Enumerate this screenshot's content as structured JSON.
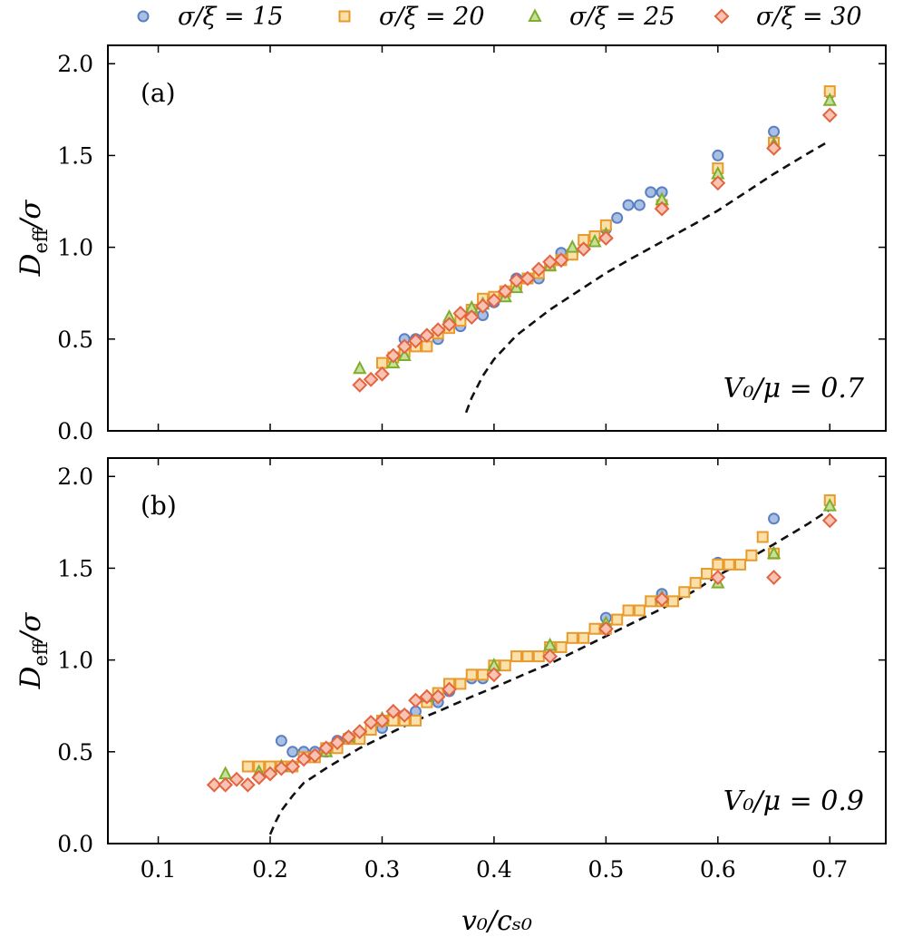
{
  "chart_data": {
    "type": "scatter",
    "xlabel": "v₀/cₛ₀",
    "ylabel": "D_eff/σ",
    "ylabel_main": "D",
    "ylabel_sub": "eff",
    "ylabel_rest": "/σ",
    "xlim": [
      0.055,
      0.75
    ],
    "ylim": [
      0.0,
      2.1
    ],
    "x_ticks": [
      0.1,
      0.2,
      0.3,
      0.4,
      0.5,
      0.6,
      0.7
    ],
    "x_tick_labels": [
      "0.1",
      "0.2",
      "0.3",
      "0.4",
      "0.5",
      "0.6",
      "0.7"
    ],
    "y_ticks": [
      0.0,
      0.5,
      1.0,
      1.5,
      2.0
    ],
    "y_tick_labels": [
      "0.0",
      "0.5",
      "1.0",
      "1.5",
      "2.0"
    ],
    "legend": [
      {
        "name": "σ/ξ = 15",
        "marker": "circle",
        "fill": "#a9c0e3",
        "stroke": "#5b7fc4"
      },
      {
        "name": "σ/ξ = 20",
        "marker": "square",
        "fill": "#fbe0aa",
        "stroke": "#e89a2c"
      },
      {
        "name": "σ/ξ = 25",
        "marker": "triangle",
        "fill": "#c8e09a",
        "stroke": "#7fae2e"
      },
      {
        "name": "σ/ξ = 30",
        "marker": "diamond",
        "fill": "#f8c3b3",
        "stroke": "#e46440"
      }
    ],
    "panels": [
      {
        "label": "(a)",
        "annotation": "V₀/μ = 0.7",
        "dashed_line": {
          "x": [
            0.375,
            0.38,
            0.39,
            0.4,
            0.42,
            0.45,
            0.48,
            0.5,
            0.52,
            0.55,
            0.58,
            0.6,
            0.62,
            0.65,
            0.68,
            0.7
          ],
          "y": [
            0.1,
            0.18,
            0.3,
            0.39,
            0.52,
            0.66,
            0.78,
            0.86,
            0.93,
            1.03,
            1.13,
            1.2,
            1.28,
            1.4,
            1.51,
            1.58
          ]
        },
        "series": [
          {
            "name": "σ/ξ = 15",
            "x": [
              0.32,
              0.33,
              0.35,
              0.37,
              0.39,
              0.4,
              0.42,
              0.44,
              0.46,
              0.47,
              0.5,
              0.51,
              0.52,
              0.53,
              0.54,
              0.55,
              0.6,
              0.65,
              0.7
            ],
            "y": [
              0.5,
              0.5,
              0.5,
              0.57,
              0.63,
              0.7,
              0.83,
              0.83,
              0.97,
              0.96,
              1.1,
              1.16,
              1.23,
              1.23,
              1.3,
              1.3,
              1.5,
              1.63,
              1.84
            ]
          },
          {
            "name": "σ/ξ = 20",
            "x": [
              0.3,
              0.31,
              0.32,
              0.33,
              0.34,
              0.35,
              0.36,
              0.37,
              0.38,
              0.39,
              0.4,
              0.41,
              0.42,
              0.43,
              0.44,
              0.45,
              0.46,
              0.47,
              0.48,
              0.49,
              0.5,
              0.55,
              0.6,
              0.65,
              0.7
            ],
            "y": [
              0.37,
              0.4,
              0.43,
              0.46,
              0.46,
              0.53,
              0.56,
              0.6,
              0.66,
              0.72,
              0.73,
              0.76,
              0.8,
              0.83,
              0.86,
              0.9,
              0.93,
              0.96,
              1.04,
              1.06,
              1.12,
              1.23,
              1.43,
              1.57,
              1.85
            ]
          },
          {
            "name": "σ/ξ = 25",
            "x": [
              0.28,
              0.31,
              0.32,
              0.36,
              0.38,
              0.39,
              0.41,
              0.42,
              0.45,
              0.47,
              0.49,
              0.5,
              0.55,
              0.6,
              0.65,
              0.7
            ],
            "y": [
              0.34,
              0.37,
              0.41,
              0.62,
              0.67,
              0.69,
              0.73,
              0.78,
              0.9,
              1.0,
              1.03,
              1.07,
              1.26,
              1.4,
              1.56,
              1.8
            ]
          },
          {
            "name": "σ/ξ = 30",
            "x": [
              0.28,
              0.29,
              0.3,
              0.31,
              0.32,
              0.33,
              0.34,
              0.35,
              0.36,
              0.37,
              0.38,
              0.39,
              0.4,
              0.41,
              0.42,
              0.43,
              0.44,
              0.45,
              0.46,
              0.48,
              0.5,
              0.55,
              0.6,
              0.65,
              0.7
            ],
            "y": [
              0.25,
              0.28,
              0.31,
              0.41,
              0.46,
              0.49,
              0.52,
              0.55,
              0.58,
              0.64,
              0.62,
              0.68,
              0.71,
              0.76,
              0.82,
              0.83,
              0.88,
              0.92,
              0.93,
              0.99,
              1.05,
              1.21,
              1.35,
              1.54,
              1.72
            ]
          }
        ]
      },
      {
        "label": "(b)",
        "annotation": "V₀/μ = 0.9",
        "dashed_line": {
          "x": [
            0.2,
            0.205,
            0.21,
            0.22,
            0.23,
            0.25,
            0.28,
            0.3,
            0.33,
            0.35,
            0.38,
            0.4,
            0.43,
            0.45,
            0.48,
            0.5,
            0.53,
            0.55,
            0.58,
            0.6,
            0.63,
            0.65,
            0.68,
            0.7
          ],
          "y": [
            0.05,
            0.12,
            0.18,
            0.26,
            0.33,
            0.41,
            0.52,
            0.58,
            0.67,
            0.72,
            0.8,
            0.85,
            0.93,
            0.98,
            1.07,
            1.13,
            1.22,
            1.28,
            1.38,
            1.46,
            1.56,
            1.63,
            1.74,
            1.82
          ]
        },
        "series": [
          {
            "name": "σ/ξ = 15",
            "x": [
              0.21,
              0.22,
              0.23,
              0.24,
              0.25,
              0.26,
              0.27,
              0.28,
              0.29,
              0.3,
              0.31,
              0.32,
              0.33,
              0.34,
              0.35,
              0.36,
              0.38,
              0.39,
              0.4,
              0.45,
              0.5,
              0.55,
              0.6,
              0.65,
              0.7
            ],
            "y": [
              0.56,
              0.5,
              0.5,
              0.5,
              0.5,
              0.56,
              0.58,
              0.6,
              0.62,
              0.63,
              0.7,
              0.7,
              0.72,
              0.77,
              0.77,
              0.83,
              0.9,
              0.9,
              0.96,
              1.06,
              1.23,
              1.36,
              1.53,
              1.77,
              1.86
            ]
          },
          {
            "name": "σ/ξ = 20",
            "x": [
              0.18,
              0.19,
              0.2,
              0.21,
              0.22,
              0.23,
              0.24,
              0.25,
              0.26,
              0.27,
              0.28,
              0.29,
              0.3,
              0.31,
              0.32,
              0.33,
              0.34,
              0.35,
              0.36,
              0.37,
              0.38,
              0.39,
              0.4,
              0.41,
              0.42,
              0.43,
              0.44,
              0.45,
              0.46,
              0.47,
              0.48,
              0.49,
              0.5,
              0.51,
              0.52,
              0.53,
              0.54,
              0.55,
              0.56,
              0.57,
              0.58,
              0.59,
              0.6,
              0.61,
              0.62,
              0.63,
              0.64,
              0.65,
              0.7
            ],
            "y": [
              0.42,
              0.42,
              0.42,
              0.42,
              0.42,
              0.47,
              0.47,
              0.52,
              0.52,
              0.57,
              0.57,
              0.62,
              0.67,
              0.67,
              0.67,
              0.67,
              0.77,
              0.82,
              0.87,
              0.87,
              0.92,
              0.92,
              0.97,
              0.97,
              1.02,
              1.02,
              1.02,
              1.07,
              1.07,
              1.12,
              1.12,
              1.17,
              1.17,
              1.22,
              1.27,
              1.27,
              1.32,
              1.32,
              1.32,
              1.37,
              1.42,
              1.47,
              1.52,
              1.52,
              1.52,
              1.57,
              1.67,
              1.58,
              1.87
            ]
          },
          {
            "name": "σ/ξ = 25",
            "x": [
              0.16,
              0.19,
              0.21,
              0.25,
              0.27,
              0.3,
              0.34,
              0.4,
              0.45,
              0.5,
              0.55,
              0.6,
              0.65,
              0.7
            ],
            "y": [
              0.38,
              0.39,
              0.42,
              0.5,
              0.58,
              0.68,
              0.8,
              0.97,
              1.08,
              1.2,
              1.34,
              1.42,
              1.58,
              1.84
            ]
          },
          {
            "name": "σ/ξ = 30",
            "x": [
              0.15,
              0.16,
              0.17,
              0.18,
              0.19,
              0.2,
              0.21,
              0.22,
              0.23,
              0.24,
              0.25,
              0.26,
              0.27,
              0.28,
              0.29,
              0.3,
              0.31,
              0.32,
              0.33,
              0.34,
              0.35,
              0.36,
              0.4,
              0.45,
              0.5,
              0.55,
              0.6,
              0.65,
              0.7
            ],
            "y": [
              0.32,
              0.32,
              0.35,
              0.32,
              0.36,
              0.38,
              0.41,
              0.42,
              0.46,
              0.48,
              0.52,
              0.55,
              0.58,
              0.61,
              0.66,
              0.67,
              0.72,
              0.7,
              0.78,
              0.8,
              0.8,
              0.84,
              0.92,
              1.02,
              1.17,
              1.33,
              1.45,
              1.45,
              1.76
            ]
          }
        ]
      }
    ]
  }
}
